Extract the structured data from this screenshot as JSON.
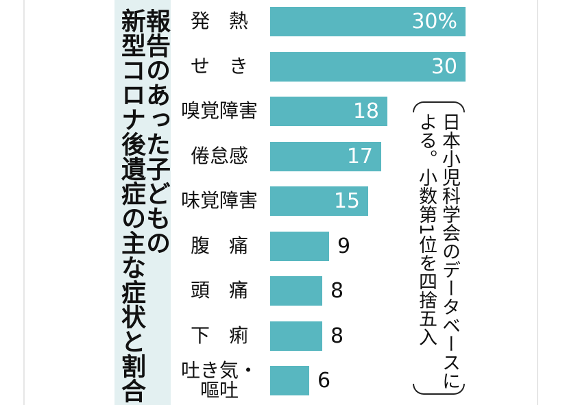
{
  "title_lines": [
    "報告のあった子どもの",
    "新型コロナ後遺症の主な症状と割合"
  ],
  "note": {
    "col1": "日本小児科学会のデータベースに",
    "col2": "よる。小数第1位を四捨五入"
  },
  "colors": {
    "bar": "#58b7c0",
    "panel": "#e3f0f1"
  },
  "chart_data": {
    "type": "bar",
    "orientation": "horizontal",
    "title": "報告のあった子どもの新型コロナ後遺症の主な症状と割合",
    "categories": [
      "発　熱",
      "せ　き",
      "嗅覚障害",
      "倦怠感",
      "味覚障害",
      "腹　痛",
      "頭　痛",
      "下　痢",
      "吐き気・嘔吐"
    ],
    "category_lines": [
      [
        "発　熱"
      ],
      [
        "せ　き"
      ],
      [
        "嗅覚障害"
      ],
      [
        "倦怠感"
      ],
      [
        "味覚障害"
      ],
      [
        "腹　痛"
      ],
      [
        "頭　痛"
      ],
      [
        "下　痢"
      ],
      [
        "吐き気・",
        "嘔吐"
      ]
    ],
    "values": [
      30,
      30,
      18,
      17,
      15,
      9,
      8,
      8,
      6
    ],
    "value_labels": [
      "30%",
      "30",
      "18",
      "17",
      "15",
      "9",
      "8",
      "8",
      "6"
    ],
    "unit": "%",
    "xlim": [
      0,
      30
    ],
    "grid": false
  }
}
